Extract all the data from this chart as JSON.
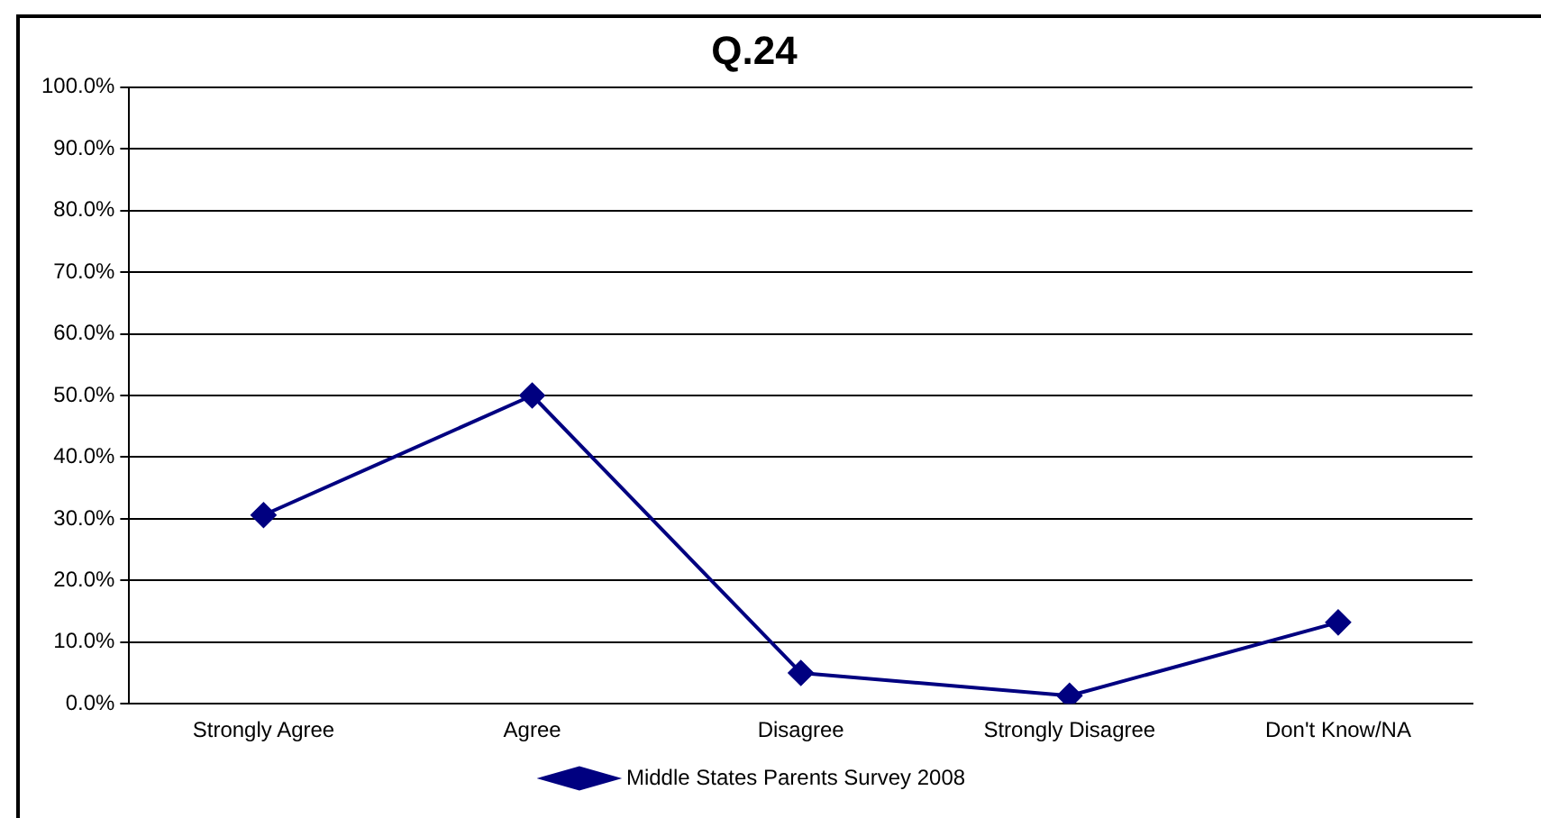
{
  "chart_data": {
    "type": "line",
    "title": "Q.24",
    "categories": [
      "Strongly Agree",
      "Agree",
      "Disagree",
      "Strongly Disagree",
      "Don't Know/NA"
    ],
    "series": [
      {
        "name": "Middle States Parents Survey 2008",
        "color": "#000080",
        "values": [
          30.6,
          50.0,
          5.0,
          1.3,
          13.2
        ]
      }
    ],
    "ylim": [
      0,
      100
    ],
    "yticks": [
      {
        "value": 0,
        "label": "0.0%"
      },
      {
        "value": 10,
        "label": "10.0%"
      },
      {
        "value": 20,
        "label": "20.0%"
      },
      {
        "value": 30,
        "label": "30.0%"
      },
      {
        "value": 40,
        "label": "40.0%"
      },
      {
        "value": 50,
        "label": "50.0%"
      },
      {
        "value": 60,
        "label": "60.0%"
      },
      {
        "value": 70,
        "label": "70.0%"
      },
      {
        "value": 80,
        "label": "80.0%"
      },
      {
        "value": 90,
        "label": "90.0%"
      },
      {
        "value": 100,
        "label": "100.0%"
      }
    ],
    "grid": "y",
    "legend": "bottom",
    "marker": "diamond",
    "line_style": "solid"
  }
}
